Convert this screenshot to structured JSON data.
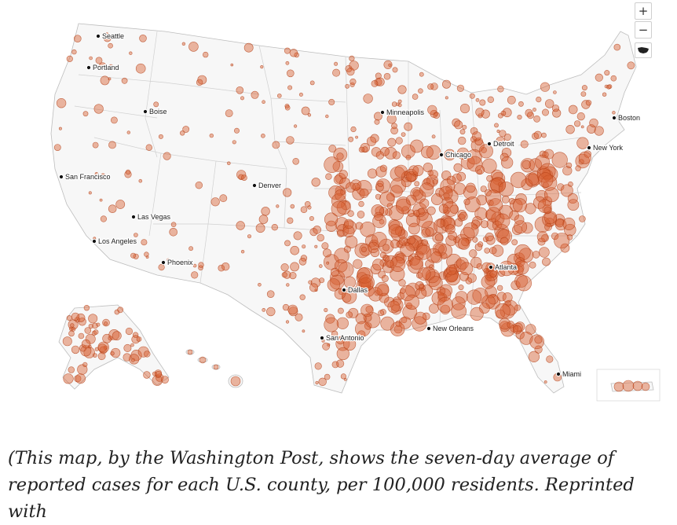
{
  "map": {
    "controls": {
      "zoom_in_label": "+",
      "zoom_out_label": "−",
      "reset_icon": "us-map-icon"
    },
    "colors": {
      "dot_fill": "#d66030",
      "dot_stroke": "#b23e14",
      "land": "#f7f7f7",
      "border": "#bdbdbd"
    },
    "cities": [
      {
        "name": "Seattle"
      },
      {
        "name": "Portland"
      },
      {
        "name": "Boise"
      },
      {
        "name": "San Francisco"
      },
      {
        "name": "Las Vegas"
      },
      {
        "name": "Los Angeles"
      },
      {
        "name": "Phoenix"
      },
      {
        "name": "Denver"
      },
      {
        "name": "Minneapolis"
      },
      {
        "name": "Chicago"
      },
      {
        "name": "Detroit"
      },
      {
        "name": "Boston"
      },
      {
        "name": "New York"
      },
      {
        "name": "Dallas"
      },
      {
        "name": "Atlanta"
      },
      {
        "name": "San Antonio"
      },
      {
        "name": "New Orleans"
      },
      {
        "name": "Miami"
      }
    ]
  },
  "caption": {
    "text": "(This map, by the Washington Post, shows the seven-day average of reported cases for each U.S. county, per 100,000 residents. Reprinted with"
  }
}
